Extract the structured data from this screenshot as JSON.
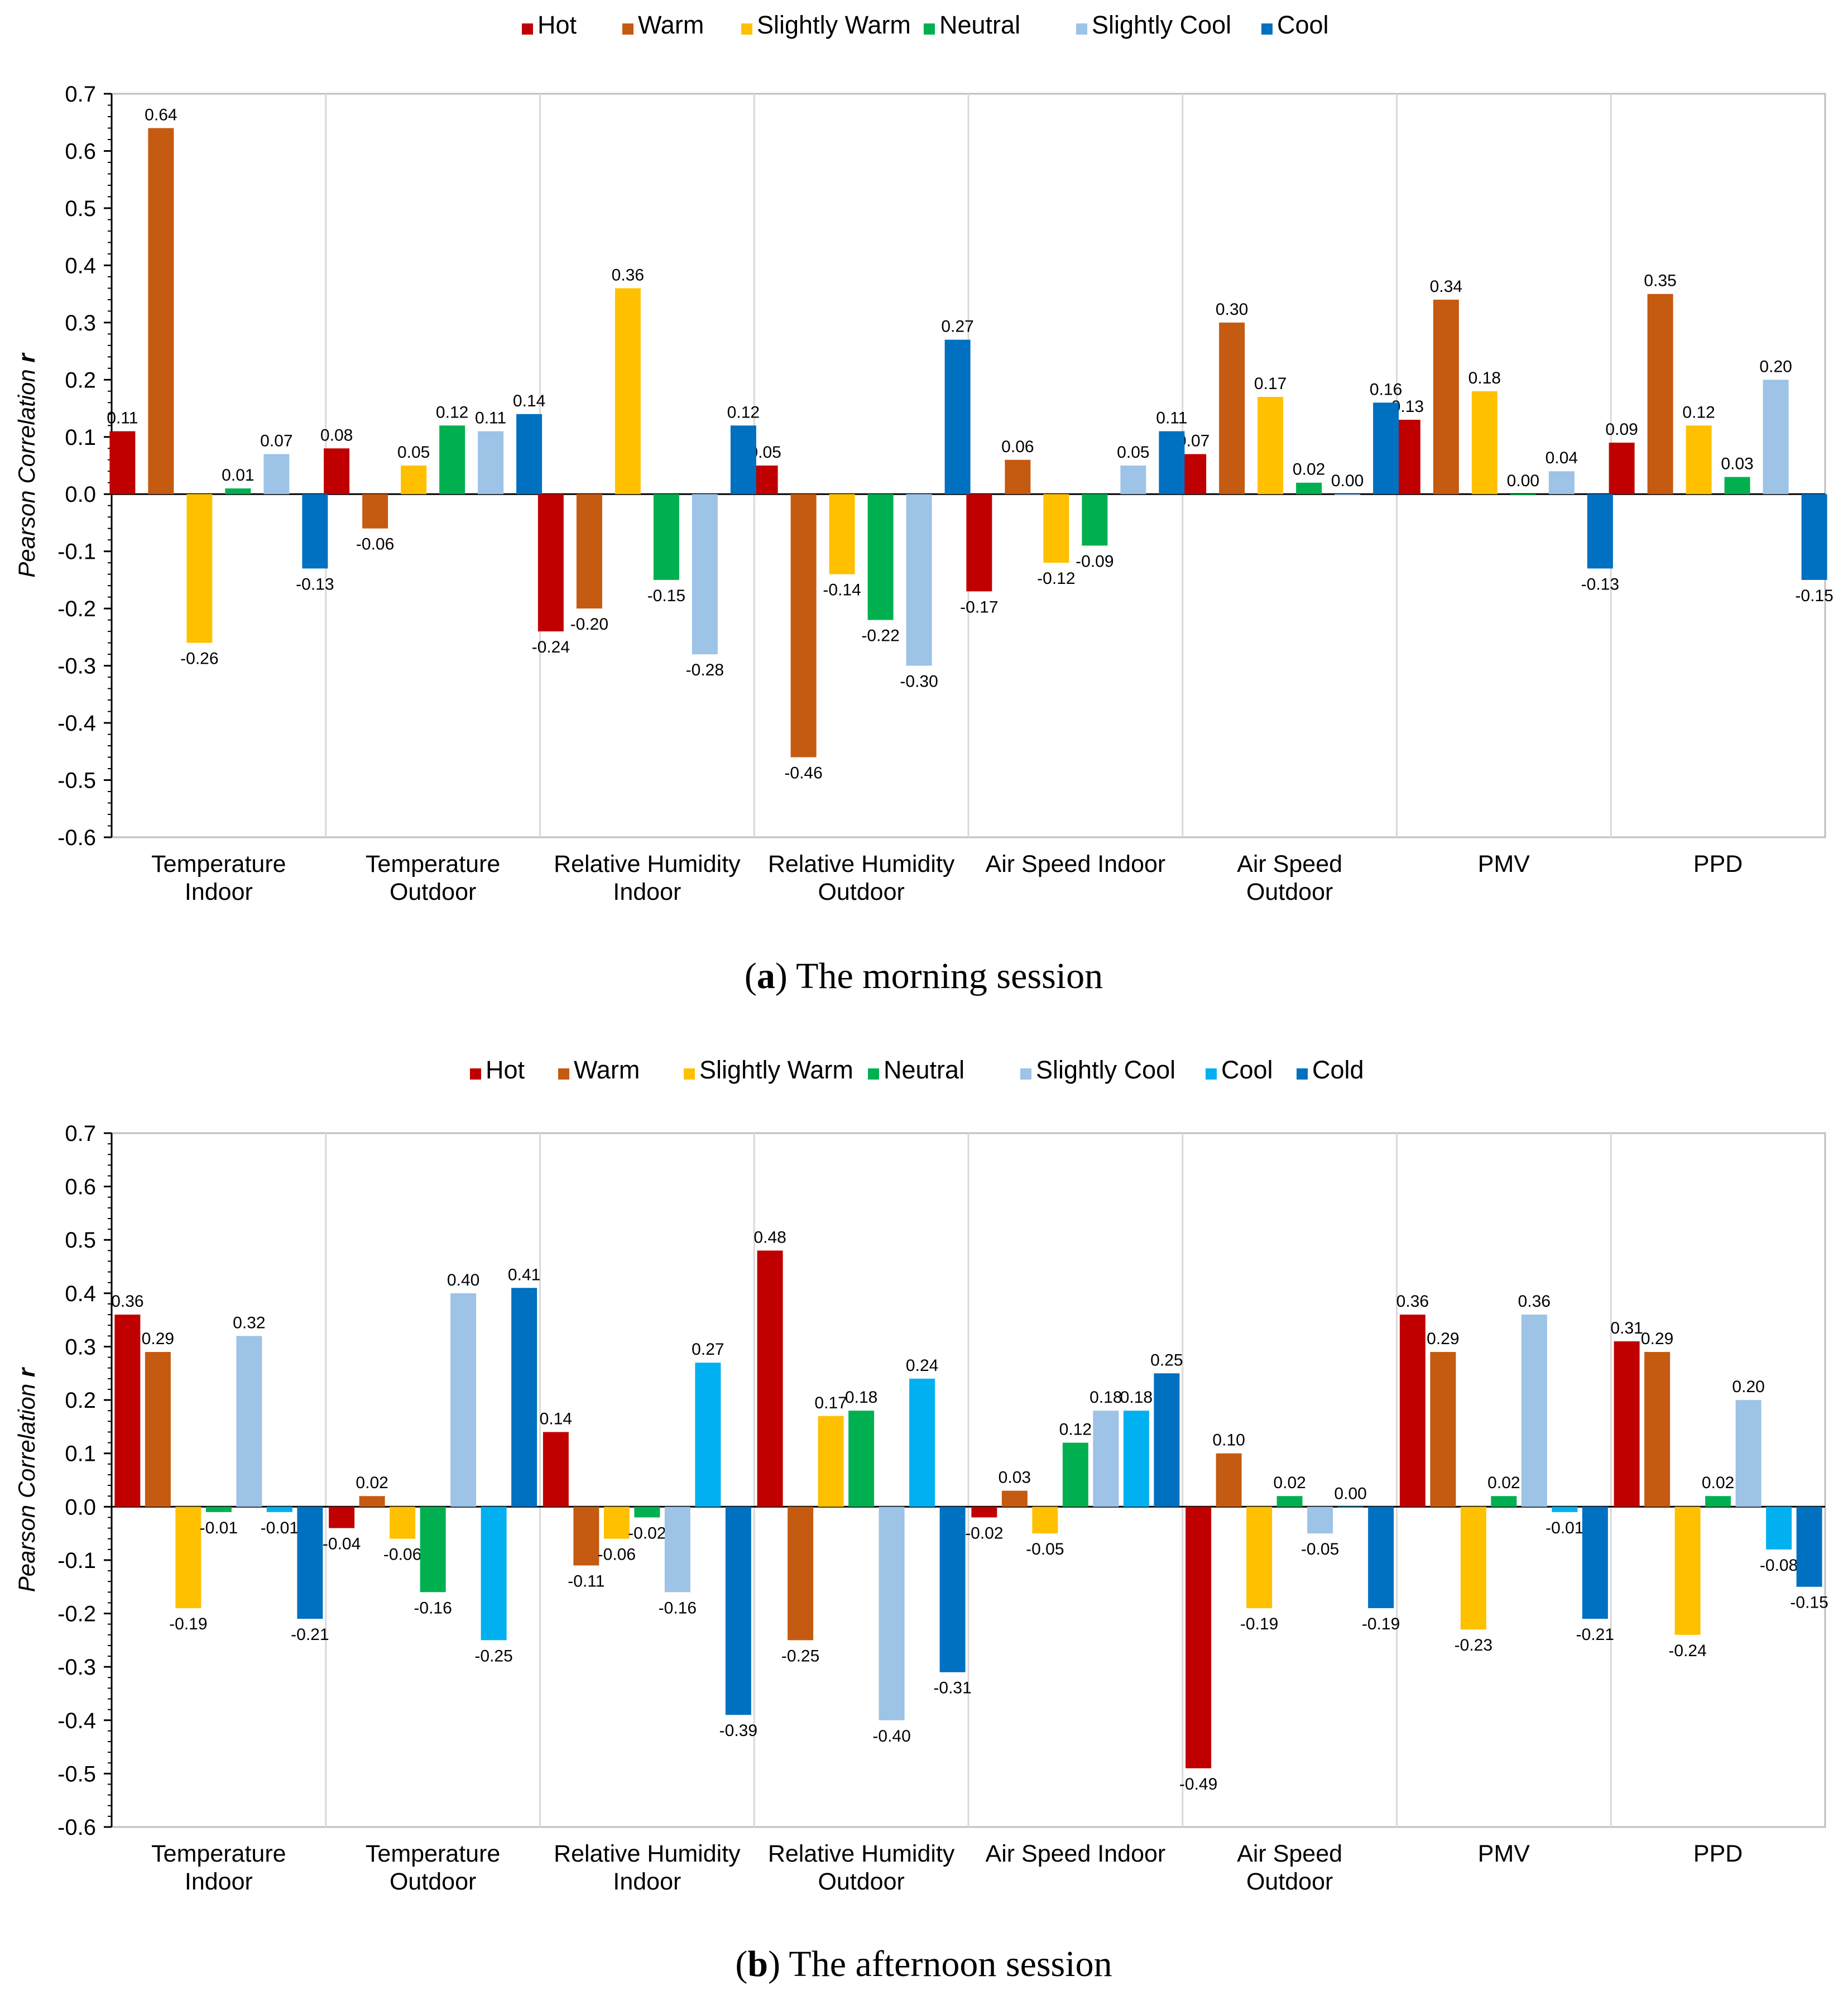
{
  "chart_data": [
    {
      "type": "bar",
      "ylabel": "Pearson Correlation r",
      "ylim": [
        -0.6,
        0.7
      ],
      "ytick_labels": [
        "0.7",
        "0.6",
        "0.5",
        "0.4",
        "0.3",
        "0.2",
        "0.1",
        "0.0",
        "-0.1",
        "-0.2",
        "-0.3",
        "-0.4",
        "-0.5",
        "-0.6"
      ],
      "categories": [
        [
          "Temperature",
          "Indoor"
        ],
        [
          "Temperature",
          "Outdoor"
        ],
        [
          "Relative Humidity",
          "Indoor"
        ],
        [
          "Relative Humidity",
          "Outdoor"
        ],
        [
          "Air Speed  Indoor"
        ],
        [
          "Air Speed",
          "Outdoor"
        ],
        [
          "PMV"
        ],
        [
          "PPD"
        ]
      ],
      "caption_bold": "(a)",
      "caption_text": " The morning session",
      "legend_placement": "top",
      "grid": "vertical",
      "series": [
        {
          "name": "Hot",
          "color": "#C00000",
          "values": [
            0.11,
            0.08,
            -0.24,
            0.05,
            -0.17,
            0.07,
            0.13,
            0.09
          ],
          "labels": [
            "0.11",
            "0.08",
            "-0.24",
            "0.05",
            "-0.17",
            "0.07",
            "0.13",
            "0.09"
          ]
        },
        {
          "name": "Warm",
          "color": "#C55A11",
          "values": [
            0.64,
            -0.06,
            -0.2,
            -0.46,
            0.06,
            0.3,
            0.34,
            0.35
          ],
          "labels": [
            "0.64",
            "-0.06",
            "-0.20",
            "-0.46",
            "0.06",
            "0.30",
            "0.34",
            "0.35"
          ]
        },
        {
          "name": "Slightly Warm",
          "color": "#FFC000",
          "values": [
            -0.26,
            0.05,
            0.36,
            -0.14,
            -0.12,
            0.17,
            0.18,
            0.12
          ],
          "labels": [
            "-0.26",
            "0.05",
            "0.36",
            "-0.14",
            "-0.12",
            "0.17",
            "0.18",
            "0.12"
          ]
        },
        {
          "name": "Neutral",
          "color": "#00B050",
          "values": [
            0.01,
            0.12,
            -0.15,
            -0.22,
            -0.09,
            0.02,
            0.0,
            0.03
          ],
          "labels": [
            "0.01",
            "0.12",
            "-0.15",
            "-0.22",
            "-0.09",
            "0.02",
            "0.00",
            "0.03"
          ]
        },
        {
          "name": "Slightly Cool",
          "color": "#9DC3E6",
          "values": [
            0.07,
            0.11,
            -0.28,
            -0.3,
            0.05,
            0.0,
            0.04,
            0.2
          ],
          "labels": [
            "0.07",
            "0.11",
            "-0.28",
            "-0.30",
            "0.05",
            "0.00",
            "0.04",
            "0.20"
          ]
        },
        {
          "name": "Cool",
          "color": "#0070C0",
          "values": [
            -0.13,
            0.14,
            0.12,
            0.27,
            0.11,
            0.16,
            -0.13,
            -0.15
          ],
          "labels": [
            "-0.13",
            "0.14",
            "0.12",
            "0.27",
            "0.11",
            "0.16",
            "-0.13",
            "-0.15"
          ]
        }
      ]
    },
    {
      "type": "bar",
      "ylabel": "Pearson Correlation r",
      "ylim": [
        -0.6,
        0.7
      ],
      "ytick_labels": [
        "0.7",
        "0.6",
        "0.5",
        "0.4",
        "0.3",
        "0.2",
        "0.1",
        "0.0",
        "-0.1",
        "-0.2",
        "-0.3",
        "-0.4",
        "-0.5",
        "-0.6"
      ],
      "categories": [
        [
          "Temperature",
          "Indoor"
        ],
        [
          "Temperature",
          "Outdoor"
        ],
        [
          "Relative Humidity",
          "Indoor"
        ],
        [
          "Relative Humidity",
          "Outdoor"
        ],
        [
          "Air Speed  Indoor"
        ],
        [
          "Air Speed",
          "Outdoor"
        ],
        [
          "PMV"
        ],
        [
          "PPD"
        ]
      ],
      "caption_bold": "(b)",
      "caption_text": " The afternoon session",
      "legend_placement": "top",
      "grid": "vertical",
      "series": [
        {
          "name": "Hot",
          "color": "#C00000",
          "values": [
            0.36,
            -0.04,
            0.14,
            0.48,
            -0.02,
            -0.49,
            0.36,
            0.31
          ],
          "labels": [
            "0.36",
            "-0.04",
            "0.14",
            "0.48",
            "-0.02",
            "-0.49",
            "0.36",
            "0.31"
          ]
        },
        {
          "name": "Warm",
          "color": "#C55A11",
          "values": [
            0.29,
            0.02,
            -0.11,
            -0.25,
            0.03,
            0.1,
            0.29,
            0.29
          ],
          "labels": [
            "0.29",
            "0.02",
            "-0.11",
            "-0.25",
            "0.03",
            "0.10",
            "0.29",
            "0.29"
          ]
        },
        {
          "name": "Slightly Warm",
          "color": "#FFC000",
          "values": [
            -0.19,
            -0.06,
            -0.06,
            0.17,
            -0.05,
            -0.19,
            -0.23,
            -0.24
          ],
          "labels": [
            "-0.19",
            "-0.06",
            "-0.06",
            "0.17",
            "-0.05",
            "-0.19",
            "-0.23",
            "-0.24"
          ]
        },
        {
          "name": "Neutral",
          "color": "#00B050",
          "values": [
            -0.01,
            -0.16,
            -0.02,
            0.18,
            0.12,
            0.02,
            0.02,
            0.02
          ],
          "labels": [
            "-0.01",
            "-0.16",
            "-0.02",
            "0.18",
            "0.12",
            "0.02",
            "0.02",
            "0.02"
          ]
        },
        {
          "name": "Slightly Cool",
          "color": "#9DC3E6",
          "values": [
            0.32,
            0.4,
            -0.16,
            -0.4,
            0.18,
            -0.05,
            0.36,
            0.2
          ],
          "labels": [
            "0.32",
            "0.40",
            "-0.16",
            "-0.40",
            "0.18",
            "-0.05",
            "0.36",
            "0.20"
          ]
        },
        {
          "name": "Cool",
          "color": "#00B0F0",
          "values": [
            -0.01,
            -0.25,
            0.27,
            0.24,
            0.18,
            0.0,
            -0.01,
            -0.08
          ],
          "labels": [
            "-0.01",
            "-0.25",
            "0.27",
            "0.24",
            "0.18",
            "0.00",
            "-0.01",
            "-0.08"
          ]
        },
        {
          "name": "Cold",
          "color": "#0070C0",
          "values": [
            -0.21,
            0.41,
            -0.39,
            -0.31,
            0.25,
            -0.19,
            -0.21,
            -0.15
          ],
          "labels": [
            "-0.21",
            "0.41",
            "-0.39",
            "-0.31",
            "0.25",
            "-0.19",
            "-0.21",
            "-0.15"
          ]
        }
      ]
    }
  ]
}
